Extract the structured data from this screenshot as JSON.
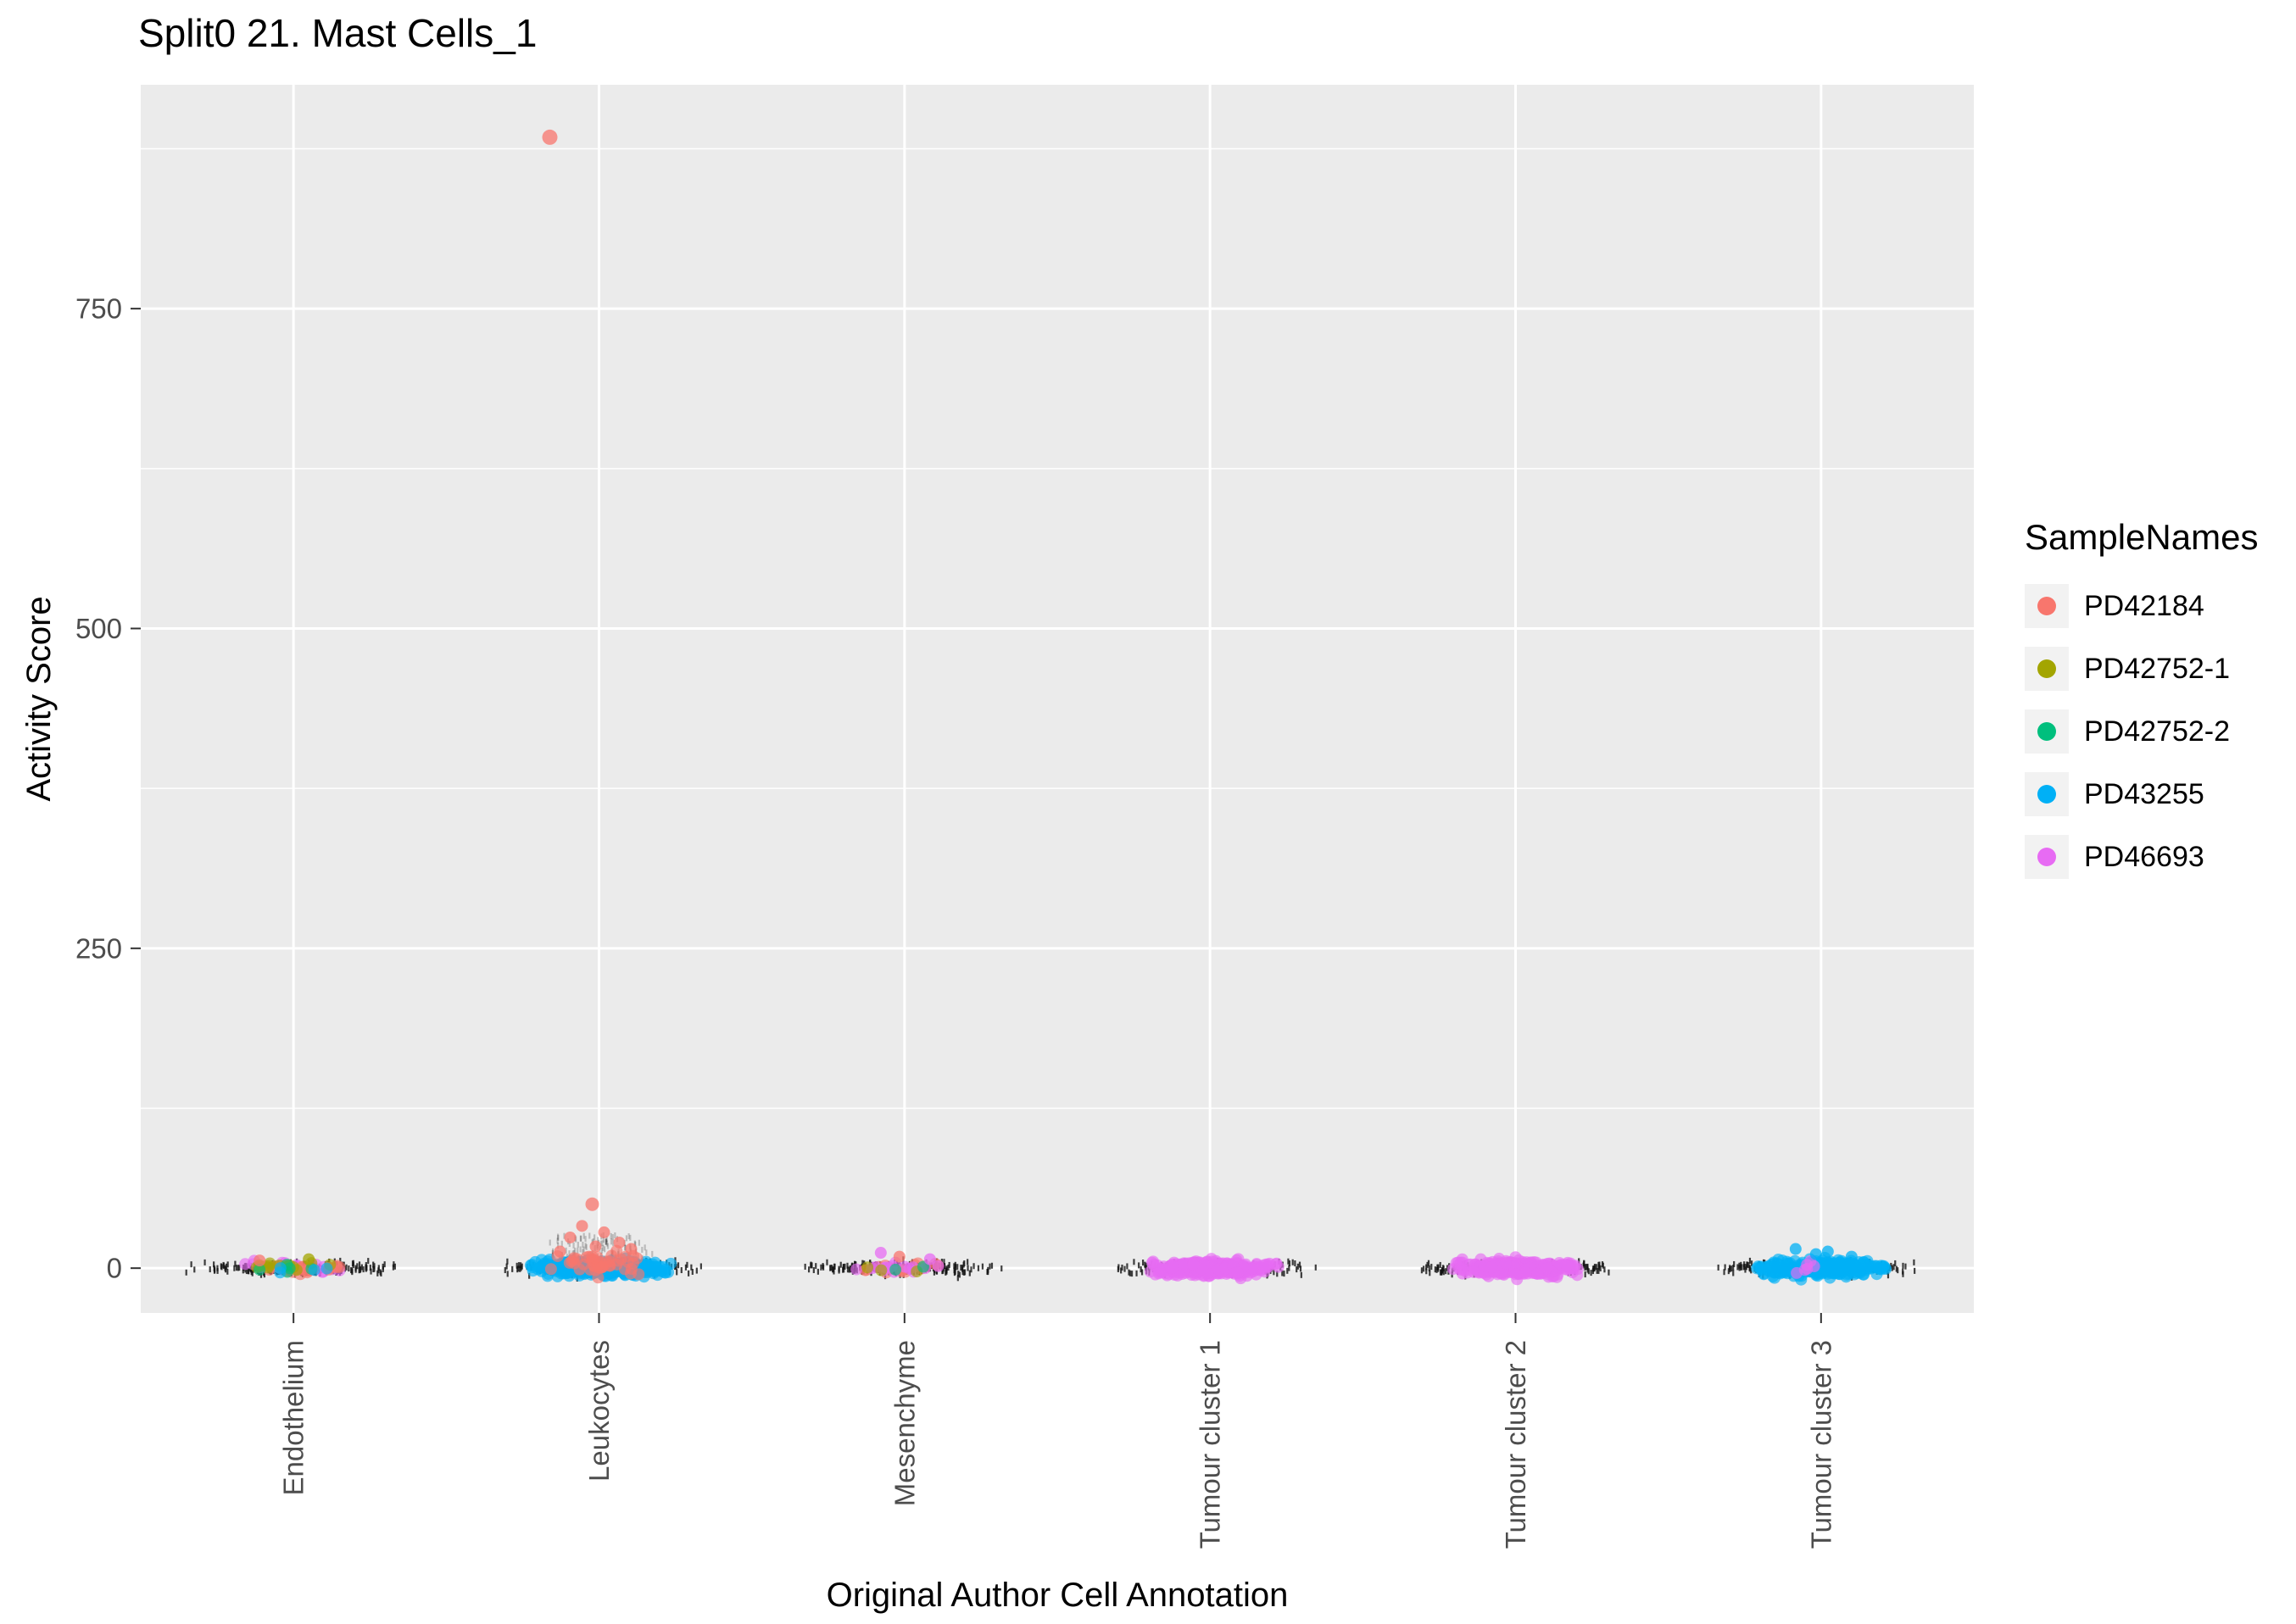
{
  "title": "Split0 21. Mast Cells_1",
  "axes": {
    "x": {
      "label": "Original Author Cell Annotation",
      "categories": [
        "Endothelium",
        "Leukocytes",
        "Mesenchyme",
        "Tumour cluster 1",
        "Tumour cluster 2",
        "Tumour cluster 3"
      ]
    },
    "y": {
      "label": "Activity Score",
      "ticks": [
        0,
        250,
        500,
        750
      ],
      "minor_ticks": [
        125,
        375,
        625,
        875
      ]
    }
  },
  "panel": {
    "background": "#EBEBEB",
    "grid_color": "#FFFFFF",
    "tick_color": "#333333",
    "tick_label_color": "#4D4D4D"
  },
  "legend": {
    "title": "SampleNames",
    "items": [
      {
        "label": "PD42184",
        "color": "#F8766D"
      },
      {
        "label": "PD42752-1",
        "color": "#A3A500"
      },
      {
        "label": "PD42752-2",
        "color": "#00BF7D"
      },
      {
        "label": "PD43255",
        "color": "#00B0F6"
      },
      {
        "label": "PD46693",
        "color": "#E76BF3"
      }
    ]
  },
  "chart_data": {
    "type": "scatter",
    "title": "Split0 21. Mast Cells_1",
    "xlabel": "Original Author Cell Annotation",
    "ylabel": "Activity Score",
    "ylim": [
      -35,
      925
    ],
    "grid": true,
    "legend_position": "right",
    "categories": [
      "Endothelium",
      "Leukocytes",
      "Mesenchyme",
      "Tumour cluster 1",
      "Tumour cluster 2",
      "Tumour cluster 3"
    ],
    "samples": [
      {
        "name": "PD42184",
        "color": "#F8766D"
      },
      {
        "name": "PD42752-1",
        "color": "#A3A500"
      },
      {
        "name": "PD42752-2",
        "color": "#00BF7D"
      },
      {
        "name": "PD43255",
        "color": "#00B0F6"
      },
      {
        "name": "PD46693",
        "color": "#E76BF3"
      },
      {
        "name": "_all",
        "color": "#111111"
      }
    ],
    "clusters": [
      {
        "category": "Endothelium",
        "sample": "_all",
        "style": "dash",
        "n": 260,
        "y_center": 0,
        "y_sd": 2.2,
        "x_halfwidth": 130
      },
      {
        "category": "Leukocytes",
        "sample": "_all",
        "style": "dash",
        "n": 240,
        "y_center": 0,
        "y_sd": 2.4,
        "x_halfwidth": 130
      },
      {
        "category": "Leukocytes",
        "sample": "_all",
        "style": "dash",
        "n": 130,
        "y_uniform": [
          2,
          26
        ],
        "x_halfwidth": 70,
        "opacity": 0.22
      },
      {
        "category": "Mesenchyme",
        "sample": "_all",
        "style": "dash",
        "n": 250,
        "y_center": 0,
        "y_sd": 2.2,
        "x_halfwidth": 126
      },
      {
        "category": "Tumour cluster 1",
        "sample": "_all",
        "style": "dash",
        "n": 250,
        "y_center": 0,
        "y_sd": 2.2,
        "x_halfwidth": 128
      },
      {
        "category": "Tumour cluster 2",
        "sample": "_all",
        "style": "dash",
        "n": 250,
        "y_center": 0,
        "y_sd": 2.2,
        "x_halfwidth": 128
      },
      {
        "category": "Tumour cluster 3",
        "sample": "_all",
        "style": "dash",
        "n": 250,
        "y_center": 0,
        "y_sd": 2.2,
        "x_halfwidth": 128
      },
      {
        "category": "Endothelium",
        "sample": "PD46693",
        "style": "dot",
        "n": 22,
        "y_center": 0,
        "y_sd": 2.3,
        "x_halfwidth": 66
      },
      {
        "category": "Endothelium",
        "sample": "PD42184",
        "style": "dot",
        "n": 26,
        "y_center": 0,
        "y_sd": 2.3,
        "x_halfwidth": 66
      },
      {
        "category": "Endothelium",
        "sample": "PD42752-1",
        "style": "dot",
        "n": 13,
        "y_center": 1,
        "y_sd": 2.0,
        "x_halfwidth": 58
      },
      {
        "category": "Endothelium",
        "sample": "PD42752-2",
        "style": "dot",
        "n": 5,
        "y_center": 0,
        "y_sd": 1.8,
        "x_halfwidth": 50
      },
      {
        "category": "Endothelium",
        "sample": "PD43255",
        "style": "dot",
        "n": 4,
        "y_center": 0,
        "y_sd": 1.8,
        "x_halfwidth": 55
      },
      {
        "category": "Leukocytes",
        "sample": "PD43255",
        "style": "dot",
        "n": 380,
        "y_center": 0,
        "y_sd": 2.8,
        "x_halfwidth": 86
      },
      {
        "category": "Leukocytes",
        "sample": "PD42184",
        "style": "dot",
        "n": 48,
        "y_center": 5,
        "y_sd": 4.5,
        "x_halfwidth": 58
      },
      {
        "category": "Mesenchyme",
        "sample": "PD42184",
        "style": "dot",
        "n": 16,
        "y_center": 1,
        "y_sd": 2.4,
        "x_halfwidth": 62
      },
      {
        "category": "Mesenchyme",
        "sample": "PD46693",
        "style": "dot",
        "n": 15,
        "y_center": 0,
        "y_sd": 2.2,
        "x_halfwidth": 70
      },
      {
        "category": "Mesenchyme",
        "sample": "PD42752-1",
        "style": "dot",
        "n": 3,
        "y_center": 0,
        "y_sd": 1.6,
        "x_halfwidth": 50
      },
      {
        "category": "Mesenchyme",
        "sample": "PD42752-2",
        "style": "dot",
        "n": 2,
        "y_center": 0,
        "y_sd": 1.6,
        "x_halfwidth": 45
      },
      {
        "category": "Tumour cluster 1",
        "sample": "PD46693",
        "style": "dot",
        "n": 320,
        "y_center": 0,
        "y_sd": 2.8,
        "x_halfwidth": 84
      },
      {
        "category": "Tumour cluster 2",
        "sample": "PD46693",
        "style": "dot",
        "n": 300,
        "y_center": 0,
        "y_sd": 2.8,
        "x_halfwidth": 80
      },
      {
        "category": "Tumour cluster 3",
        "sample": "PD43255",
        "style": "dot",
        "n": 330,
        "y_center": 0,
        "y_sd": 2.8,
        "x_halfwidth": 84
      },
      {
        "category": "Tumour cluster 3",
        "sample": "PD46693",
        "style": "dot",
        "n": 6,
        "y_center": 0,
        "y_sd": 2.0,
        "x_halfwidth": 55
      }
    ],
    "notable_points": [
      {
        "category": "Leukocytes",
        "sample": "PD42184",
        "y": 884,
        "dx": -58,
        "r": 9
      },
      {
        "category": "Leukocytes",
        "sample": "PD42184",
        "y": 50,
        "dx": -8,
        "r": 8
      },
      {
        "category": "Leukocytes",
        "sample": "PD42184",
        "y": 33,
        "dx": -20,
        "r": 7
      },
      {
        "category": "Leukocytes",
        "sample": "PD42184",
        "y": 28,
        "dx": 6,
        "r": 7
      },
      {
        "category": "Leukocytes",
        "sample": "PD42184",
        "y": 24,
        "dx": -34,
        "r": 7
      },
      {
        "category": "Leukocytes",
        "sample": "PD42184",
        "y": 20,
        "dx": 24,
        "r": 7
      },
      {
        "category": "Leukocytes",
        "sample": "PD42184",
        "y": 17,
        "dx": -4,
        "r": 7
      },
      {
        "category": "Leukocytes",
        "sample": "PD42184",
        "y": 15,
        "dx": 38,
        "r": 7
      },
      {
        "category": "Leukocytes",
        "sample": "PD42184",
        "y": 13,
        "dx": -46,
        "r": 7
      },
      {
        "category": "Mesenchyme",
        "sample": "PD46693",
        "y": 12,
        "dx": -28,
        "r": 7
      },
      {
        "category": "Mesenchyme",
        "sample": "PD42184",
        "y": 9,
        "dx": -6,
        "r": 7
      },
      {
        "category": "Mesenchyme",
        "sample": "PD46693",
        "y": 7,
        "dx": 30,
        "r": 7
      },
      {
        "category": "Tumour cluster 3",
        "sample": "PD43255",
        "y": 15,
        "dx": -30,
        "r": 7
      },
      {
        "category": "Tumour cluster 3",
        "sample": "PD43255",
        "y": 13,
        "dx": 8,
        "r": 7
      },
      {
        "category": "Tumour cluster 3",
        "sample": "PD43255",
        "y": 11,
        "dx": -6,
        "r": 7
      },
      {
        "category": "Tumour cluster 3",
        "sample": "PD43255",
        "y": 9,
        "dx": 36,
        "r": 7
      },
      {
        "category": "Endothelium",
        "sample": "PD42752-1",
        "y": 7,
        "dx": 18,
        "r": 7
      },
      {
        "category": "Endothelium",
        "sample": "PD42184",
        "y": 6,
        "dx": -40,
        "r": 7
      }
    ]
  }
}
